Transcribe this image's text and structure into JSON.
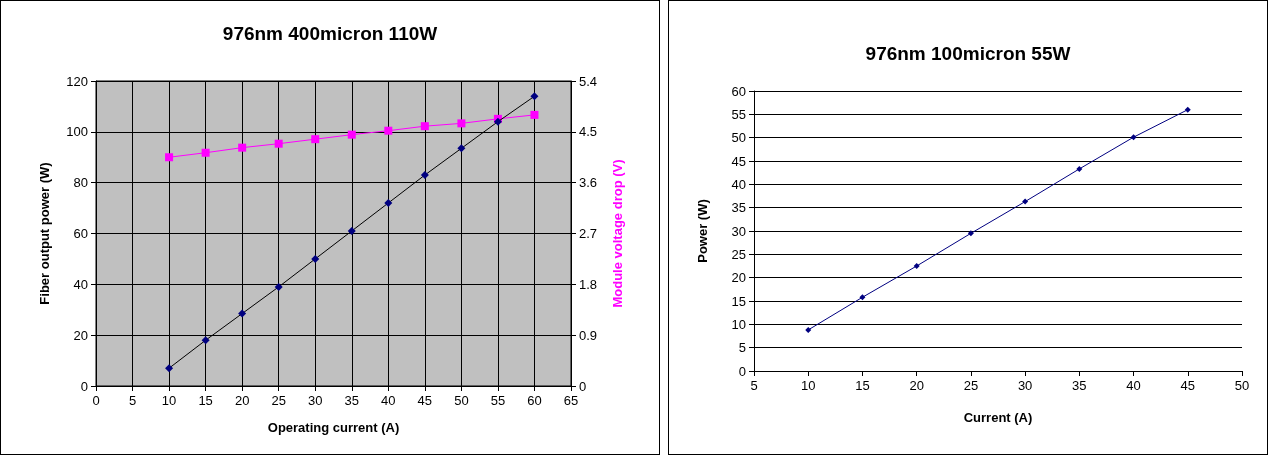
{
  "chart_data": [
    {
      "type": "line",
      "title": "976nm 400micron 110W",
      "xlabel": "Operating current (A)",
      "ylabel": "Fiber output power (W)",
      "y2label": "Module voltage drop (V)",
      "x": [
        10,
        15,
        20,
        25,
        30,
        35,
        40,
        45,
        50,
        55,
        60
      ],
      "series": [
        {
          "color": "#000080",
          "marker": "diamond",
          "values": [
            7,
            18,
            28.5,
            39,
            50,
            61,
            72,
            83,
            93.5,
            104,
            114
          ]
        },
        {
          "color": "#ff00ff",
          "marker": "square",
          "axis": "y2",
          "values": [
            4.05,
            4.13,
            4.22,
            4.29,
            4.37,
            4.45,
            4.52,
            4.6,
            4.65,
            4.73,
            4.8
          ]
        }
      ],
      "xlim": [
        0,
        65
      ],
      "xticks": [
        0,
        5,
        10,
        15,
        20,
        25,
        30,
        35,
        40,
        45,
        50,
        55,
        60,
        65
      ],
      "ylim": [
        0,
        120
      ],
      "yticks": [
        0,
        20,
        40,
        60,
        80,
        100,
        120
      ],
      "y2lim": [
        0,
        5.4
      ],
      "y2ticks": [
        0,
        0.9,
        1.8,
        2.7,
        3.6,
        4.5,
        5.4
      ],
      "grid": true,
      "line_style": "solid"
    },
    {
      "type": "line",
      "title": "976nm 100micron 55W",
      "xlabel": "Current (A)",
      "ylabel": "Power (W)",
      "x": [
        10,
        15,
        20,
        25,
        30,
        35,
        40,
        45
      ],
      "series": [
        {
          "color": "#000080",
          "marker": "diamond",
          "values": [
            8.8,
            15.8,
            22.5,
            29.5,
            36.3,
            43.3,
            50.1,
            56
          ]
        }
      ],
      "xlim": [
        5,
        50
      ],
      "xticks": [
        5,
        10,
        15,
        20,
        25,
        30,
        35,
        40,
        45,
        50
      ],
      "ylim": [
        0,
        60
      ],
      "yticks": [
        0,
        5,
        10,
        15,
        20,
        25,
        30,
        35,
        40,
        45,
        50,
        55,
        60
      ],
      "grid": "y",
      "line_style": "solid"
    }
  ]
}
